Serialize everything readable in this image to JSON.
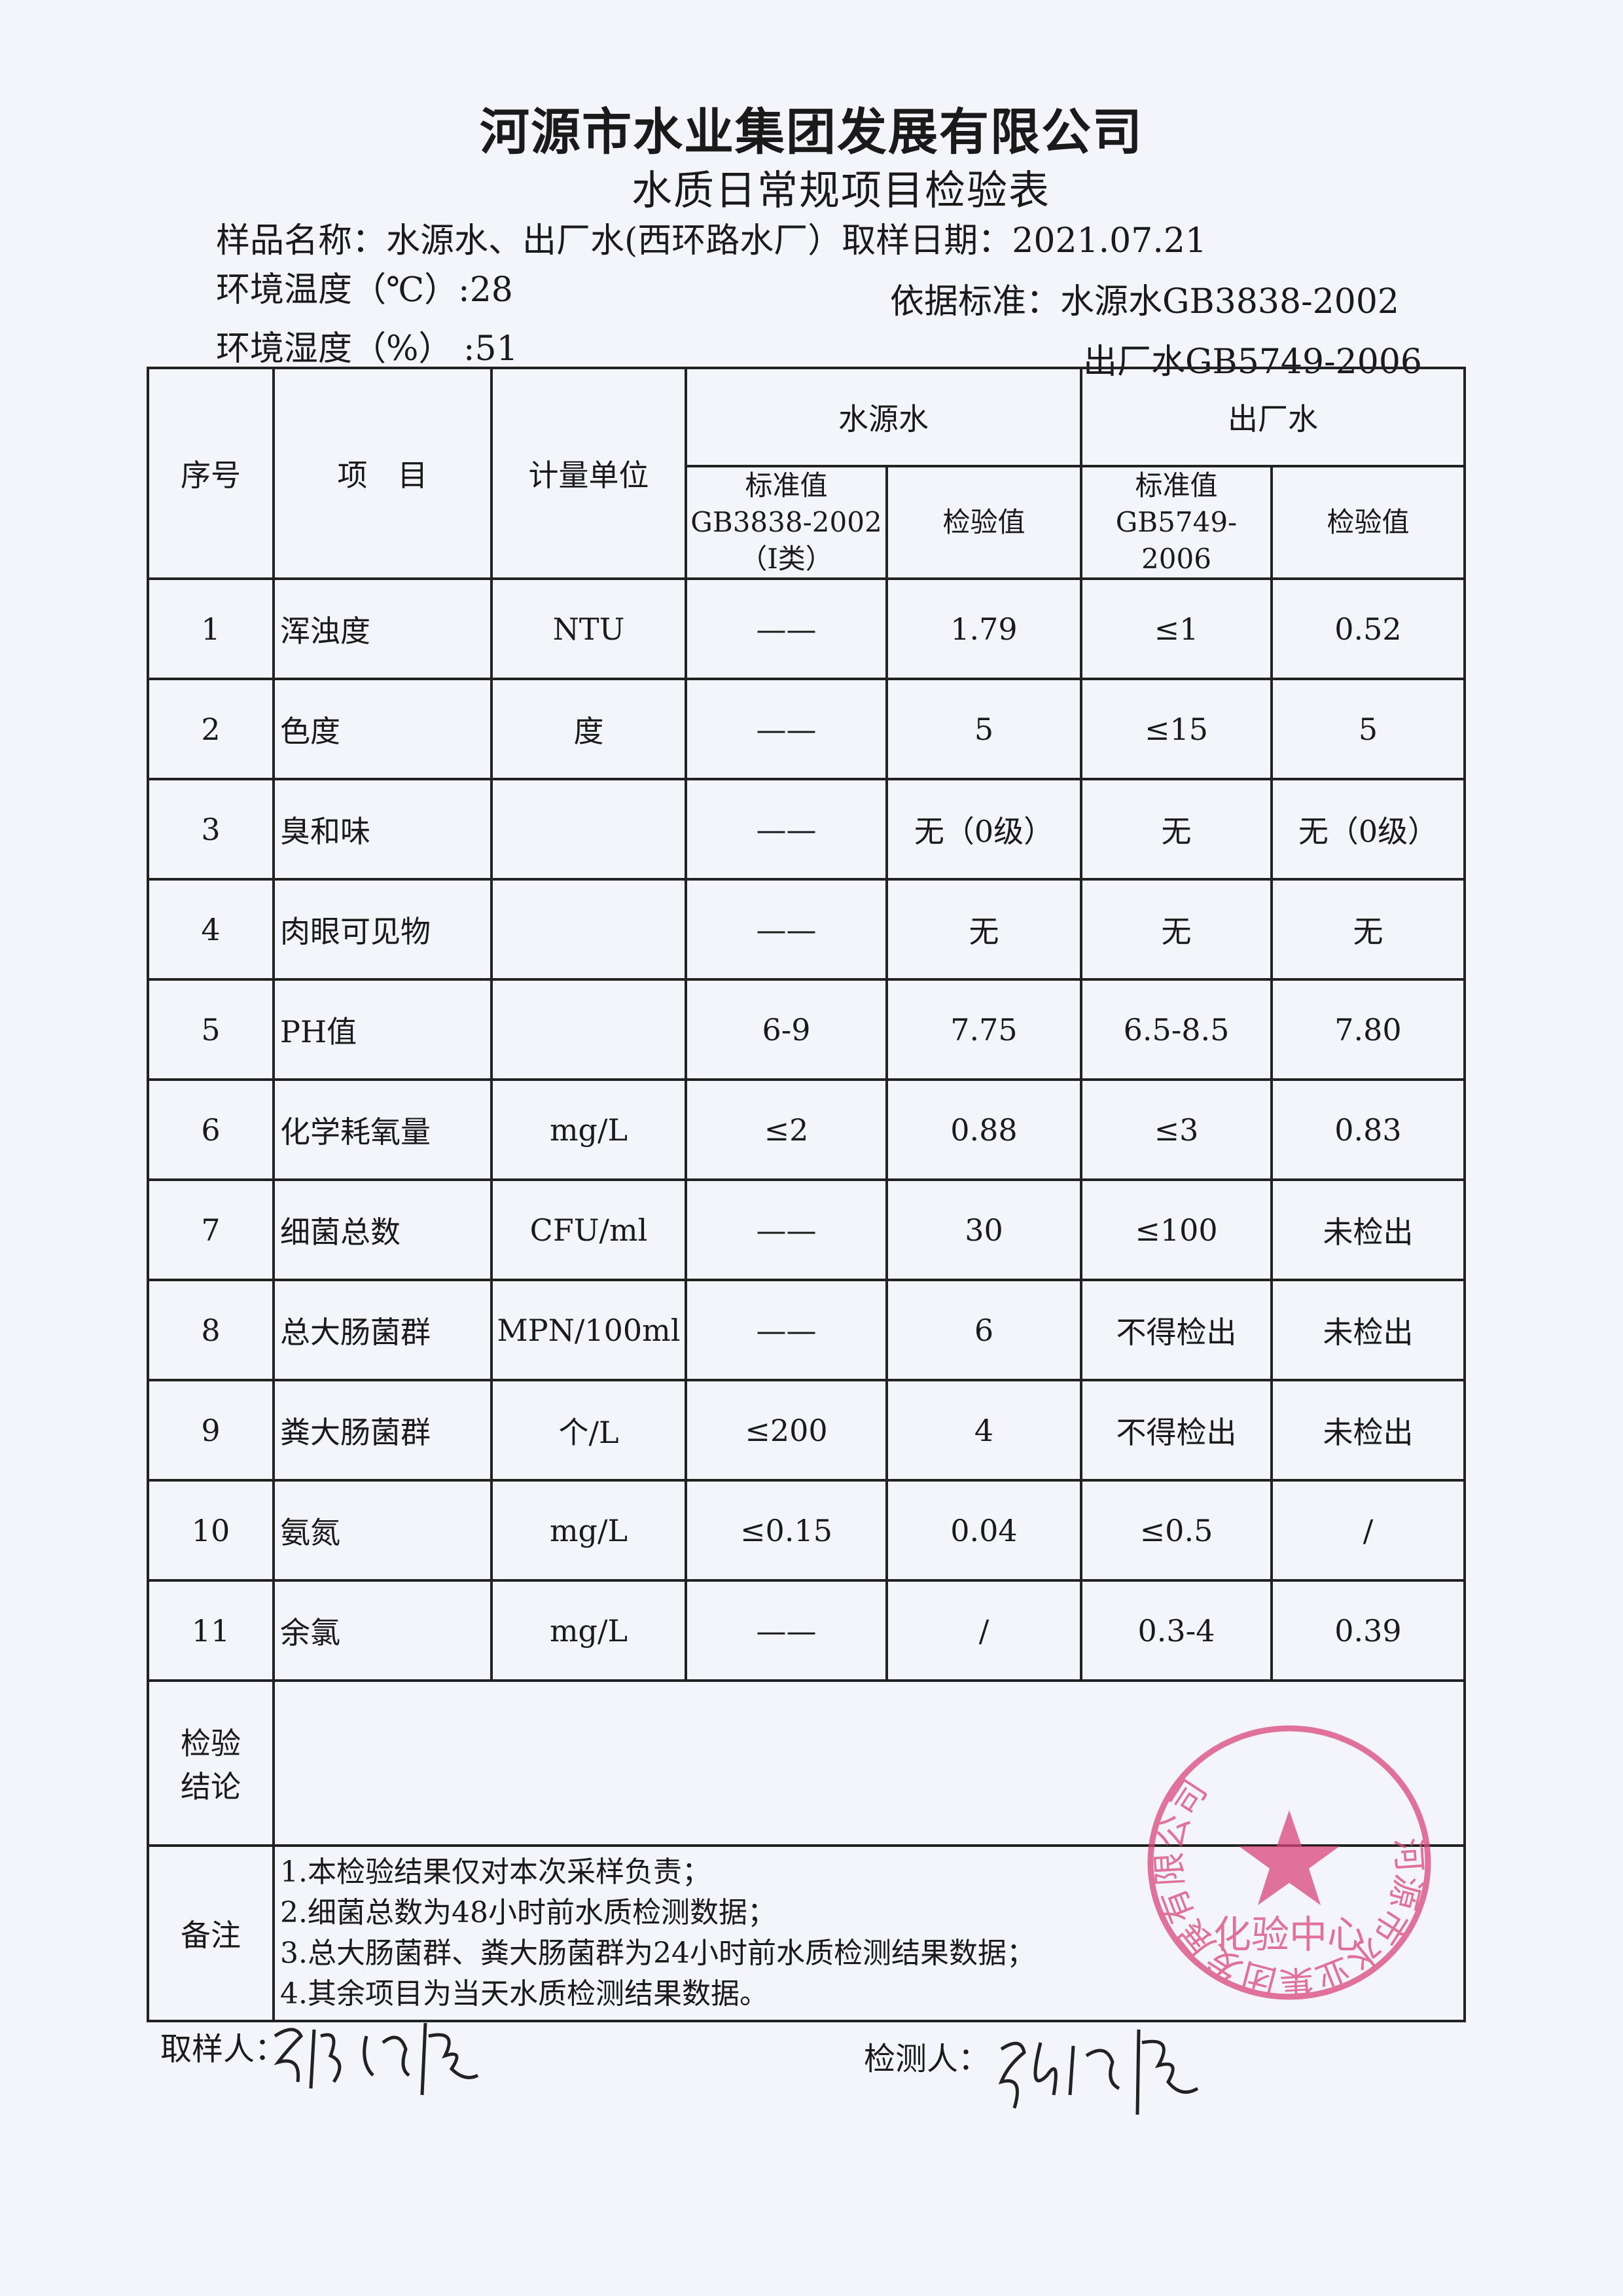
{
  "header": {
    "company": "河源市水业集团发展有限公司",
    "form_title": "水质日常规项目检验表",
    "sample_name": "样品名称：水源水、出厂水(西环路水厂）取样日期：2021.07.21",
    "temperature": "环境温度（℃）:28",
    "standard_label": "依据标准：水源水GB3838-2002",
    "humidity": "环境湿度（%）  :51",
    "standard_line2": "出厂水GB5749-2006"
  },
  "table": {
    "col_no": "序号",
    "col_item": "项　目",
    "col_unit": "计量单位",
    "group_source": "水源水",
    "group_outlet": "出厂水",
    "source_std_line1": "标准值",
    "source_std_line2": "GB3838-2002",
    "source_std_line3": "（Ⅰ类）",
    "source_val": "检验值",
    "outlet_std_line1": "标准值",
    "outlet_std_line2": "GB5749-2006",
    "outlet_val": "检验值",
    "rows": [
      {
        "no": "1",
        "item": "浑浊度",
        "unit": "NTU",
        "src_std": "——",
        "src_val": "1.79",
        "out_std": "≤1",
        "out_val": "0.52"
      },
      {
        "no": "2",
        "item": "色度",
        "unit": "度",
        "src_std": "——",
        "src_val": "5",
        "out_std": "≤15",
        "out_val": "5"
      },
      {
        "no": "3",
        "item": "臭和味",
        "unit": "",
        "src_std": "——",
        "src_val": "无（0级）",
        "out_std": "无",
        "out_val": "无（0级）"
      },
      {
        "no": "4",
        "item": "肉眼可见物",
        "unit": "",
        "src_std": "——",
        "src_val": "无",
        "out_std": "无",
        "out_val": "无"
      },
      {
        "no": "5",
        "item": "PH值",
        "unit": "",
        "src_std": "6-9",
        "src_val": "7.75",
        "out_std": "6.5-8.5",
        "out_val": "7.80"
      },
      {
        "no": "6",
        "item": "化学耗氧量",
        "unit": "mg/L",
        "src_std": "≤2",
        "src_val": "0.88",
        "out_std": "≤3",
        "out_val": "0.83"
      },
      {
        "no": "7",
        "item": "细菌总数",
        "unit": "CFU/ml",
        "src_std": "——",
        "src_val": "30",
        "out_std": "≤100",
        "out_val": "未检出"
      },
      {
        "no": "8",
        "item": "总大肠菌群",
        "unit": "MPN/100ml",
        "src_std": "——",
        "src_val": "6",
        "out_std": "不得检出",
        "out_val": "未检出"
      },
      {
        "no": "9",
        "item": "粪大肠菌群",
        "unit": "个/L",
        "src_std": "≤200",
        "src_val": "4",
        "out_std": "不得检出",
        "out_val": "未检出"
      },
      {
        "no": "10",
        "item": "氨氮",
        "unit": "mg/L",
        "src_std": "≤0.15",
        "src_val": "0.04",
        "out_std": "≤0.5",
        "out_val": "/"
      },
      {
        "no": "11",
        "item": "余氯",
        "unit": "mg/L",
        "src_std": "——",
        "src_val": "/",
        "out_std": "0.3-4",
        "out_val": "0.39"
      }
    ],
    "conclusion_label_1": "检验",
    "conclusion_label_2": "结论",
    "conclusion_value": "",
    "notes_label": "备注",
    "notes": [
      "1.本检验结果仅对本次采样负责；",
      "2.细菌总数为48小时前水质检测数据；",
      "3.总大肠菌群、粪大肠菌群为24小时前水质检测结果数据；",
      "4.其余项目为当天水质检测结果数据。"
    ]
  },
  "footer": {
    "sampler_label": "取样人：",
    "tester_label": "检测人："
  },
  "stamp": {
    "ring_text": "河源市水业集团发展有限公司",
    "center_text": "化验中心",
    "color": "#d9467a"
  }
}
